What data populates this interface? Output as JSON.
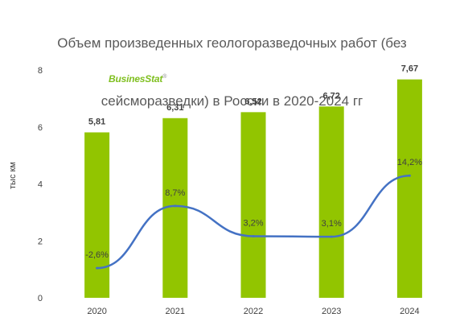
{
  "title_lines": [
    "Объем произведенных геологоразведочных работ (без",
    "сейсморазведки) в России в 2020-2024 гг"
  ],
  "brand": {
    "name": "BusinesStat",
    "mark": "®"
  },
  "colors": {
    "bar": "#92c500",
    "line": "#4472c4",
    "brand": "#7fbf1f",
    "text": "#404040"
  },
  "chart_data": {
    "type": "bar",
    "categories": [
      "2020",
      "2021",
      "2022",
      "2023",
      "2024"
    ],
    "series": [
      {
        "values": [
          5.81,
          6.31,
          6.52,
          6.72,
          7.67
        ],
        "labels": [
          "5,81",
          "6,31",
          "6,52",
          "6,72",
          "7,67"
        ]
      },
      {
        "type": "line",
        "values": [
          -2.6,
          8.7,
          3.2,
          3.1,
          14.2
        ],
        "labels": [
          "-2,6%",
          "8,7%",
          "3,2%",
          "3,1%",
          "14,2%"
        ]
      }
    ],
    "ylabel": "тыс км",
    "ylim": [
      0,
      8
    ],
    "yticks": [
      "0",
      "2",
      "4",
      "6",
      "8"
    ],
    "grid": false
  }
}
